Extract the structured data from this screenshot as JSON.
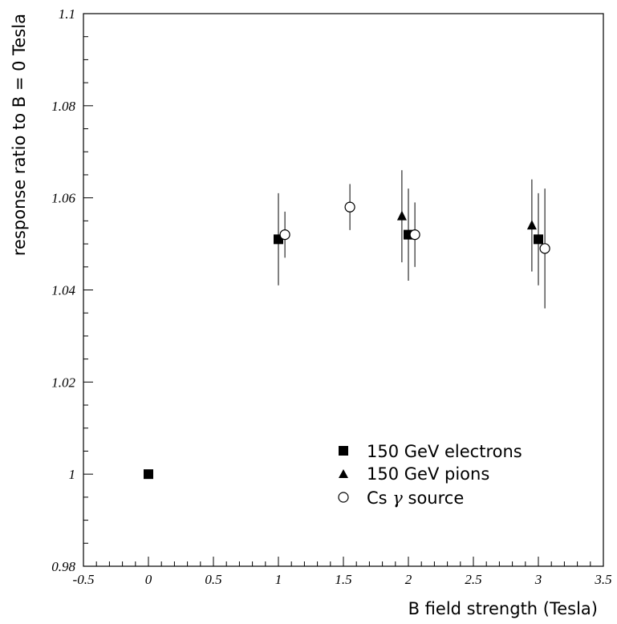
{
  "chart_data": {
    "type": "scatter",
    "title": "",
    "xlabel": "B field strength (Tesla)",
    "ylabel": "response ratio to B = 0 Tesla",
    "xlim": [
      -0.5,
      3.5
    ],
    "ylim": [
      0.98,
      1.1
    ],
    "xticks": [
      "-0.5",
      "0",
      "0.5",
      "1",
      "1.5",
      "2",
      "2.5",
      "3",
      "3.5"
    ],
    "yticks": [
      "0.98",
      "1",
      "1.02",
      "1.04",
      "1.06",
      "1.08",
      "1.1"
    ],
    "grid": false,
    "legend_position": "bottom-right",
    "series": [
      {
        "name": "150 GeV electrons",
        "marker": "filled-square",
        "points": [
          {
            "x": 0.0,
            "y": 1.0,
            "err": 0.0
          },
          {
            "x": 1.0,
            "y": 1.051,
            "err": 0.01
          },
          {
            "x": 2.0,
            "y": 1.052,
            "err": 0.01
          },
          {
            "x": 3.0,
            "y": 1.051,
            "err": 0.01
          }
        ]
      },
      {
        "name": "150 GeV pions",
        "marker": "filled-triangle",
        "points": [
          {
            "x": 1.95,
            "y": 1.056,
            "err": 0.01
          },
          {
            "x": 2.95,
            "y": 1.054,
            "err": 0.01
          }
        ]
      },
      {
        "name": "Cs γ source",
        "marker": "open-circle",
        "points": [
          {
            "x": 1.05,
            "y": 1.052,
            "err": 0.005
          },
          {
            "x": 1.55,
            "y": 1.058,
            "err": 0.005
          },
          {
            "x": 2.05,
            "y": 1.052,
            "err": 0.007
          },
          {
            "x": 3.05,
            "y": 1.049,
            "err": 0.013
          }
        ]
      }
    ],
    "legend": {
      "electrons_label": "150 GeV electrons",
      "pions_label": "150 GeV pions",
      "cs_label_prefix": "Cs ",
      "cs_label_greek": "γ",
      "cs_label_suffix": " source"
    }
  }
}
